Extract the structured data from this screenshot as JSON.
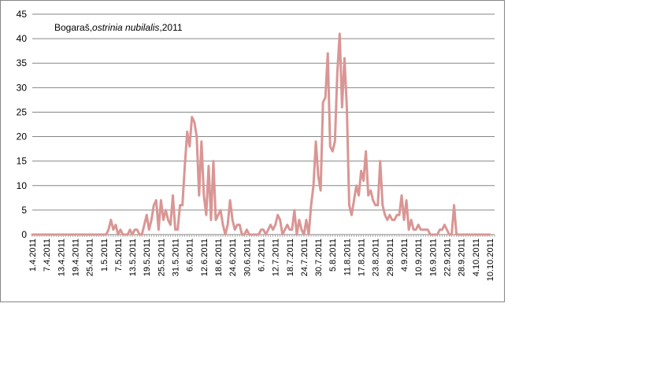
{
  "chart_data": {
    "type": "line",
    "title_plain": "Bogaraš,",
    "title_italic": "ostrinia nubilalis",
    "title_suffix": ",2011",
    "ylim": [
      0,
      45
    ],
    "y_ticks": [
      "0",
      "5",
      "10",
      "15",
      "20",
      "25",
      "30",
      "35",
      "40",
      "45"
    ],
    "x_tick_labels": [
      "1.4.2011",
      "7.4.2011",
      "13.4.2011",
      "19.4.2011",
      "25.4.2011",
      "1.5.2011",
      "7.5.2011",
      "13.5.2011",
      "19.5.2011",
      "25.5.2011",
      "31.5.2011",
      "6.6.2011",
      "12.6.2011",
      "18.6.2011",
      "24.6.2011",
      "30.6.2011",
      "6.7.2011",
      "12.7.2011",
      "18.7.2011",
      "24.7.2011",
      "30.7.2011",
      "5.8.2011",
      "11.8.2011",
      "17.8.2011",
      "23.8.2011",
      "29.8.2011",
      "4.9.2011",
      "10.9.2011",
      "16.9.2011",
      "22.9.2011",
      "28.9.2011",
      "4.10.2011",
      "10.10.2011"
    ],
    "grid": true,
    "legend": "none",
    "line_color": "#d99694",
    "grid_color": "#868686",
    "series": [
      {
        "start_date": "2011-04-01",
        "values": [
          0,
          0,
          0,
          0,
          0,
          0,
          0,
          0,
          0,
          0,
          0,
          0,
          0,
          0,
          0,
          0,
          0,
          0,
          0,
          0,
          0,
          0,
          0,
          0,
          0,
          0,
          0,
          0,
          0,
          0,
          0,
          0,
          1,
          3,
          1,
          2,
          0,
          1,
          0,
          0,
          0,
          1,
          0,
          1,
          1,
          0,
          0,
          2,
          4,
          1,
          3,
          6,
          7,
          1,
          7,
          3,
          5,
          3,
          2,
          8,
          1,
          1,
          6,
          6,
          14,
          21,
          18,
          24,
          23,
          20,
          8,
          19,
          8,
          4,
          14,
          3,
          15,
          3,
          4,
          5,
          2,
          0,
          2,
          7,
          3,
          1,
          2,
          2,
          0,
          0,
          1,
          0,
          0,
          0,
          0,
          0,
          1,
          1,
          0,
          1,
          2,
          1,
          2,
          4,
          3,
          0,
          1,
          2,
          1,
          1,
          5,
          0,
          3,
          1,
          0,
          3,
          0,
          6,
          10,
          19,
          12,
          9,
          27,
          28,
          37,
          18,
          17,
          19,
          33,
          41,
          26,
          36,
          26,
          6,
          4,
          7,
          10,
          8,
          13,
          11,
          17,
          8,
          9,
          7,
          6,
          6,
          15,
          6,
          4,
          3,
          4,
          3,
          3,
          4,
          4,
          8,
          3,
          7,
          1,
          3,
          1,
          1,
          2,
          1,
          1,
          1,
          1,
          0,
          0,
          0,
          0,
          1,
          1,
          2,
          1,
          0,
          0,
          6,
          0,
          0,
          0,
          0,
          0,
          0,
          0,
          0,
          0,
          0,
          0,
          0,
          0,
          0,
          0
        ]
      }
    ]
  }
}
